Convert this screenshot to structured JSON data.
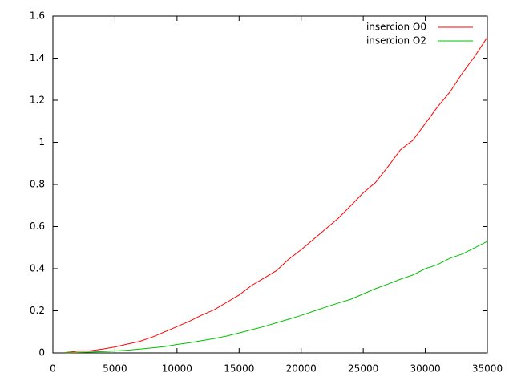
{
  "chart_data": {
    "type": "line",
    "x": [
      1000,
      2000,
      3000,
      4000,
      5000,
      6000,
      7000,
      8000,
      9000,
      10000,
      11000,
      12000,
      13000,
      14000,
      15000,
      16000,
      17000,
      18000,
      19000,
      20000,
      21000,
      22000,
      23000,
      24000,
      25000,
      26000,
      27000,
      28000,
      29000,
      30000,
      31000,
      32000,
      33000,
      34000,
      35000
    ],
    "series": [
      {
        "name": "insercion O0",
        "color": "#ff0000",
        "values": [
          0.002,
          0.008,
          0.01,
          0.018,
          0.028,
          0.042,
          0.055,
          0.075,
          0.1,
          0.125,
          0.15,
          0.18,
          0.205,
          0.24,
          0.275,
          0.32,
          0.355,
          0.39,
          0.445,
          0.49,
          0.54,
          0.59,
          0.64,
          0.7,
          0.76,
          0.81,
          0.885,
          0.965,
          1.01,
          1.09,
          1.17,
          1.24,
          1.33,
          1.41,
          1.5
        ]
      },
      {
        "name": "insercion O2",
        "color": "#00c000",
        "values": [
          0.001,
          0.002,
          0.004,
          0.006,
          0.009,
          0.013,
          0.018,
          0.024,
          0.03,
          0.04,
          0.048,
          0.058,
          0.068,
          0.08,
          0.095,
          0.11,
          0.125,
          0.143,
          0.16,
          0.178,
          0.198,
          0.218,
          0.237,
          0.255,
          0.28,
          0.305,
          0.327,
          0.35,
          0.37,
          0.4,
          0.42,
          0.45,
          0.47,
          0.5,
          0.53
        ]
      }
    ],
    "xlim": [
      0,
      35000
    ],
    "xticks": [
      0,
      5000,
      10000,
      15000,
      20000,
      25000,
      30000,
      35000
    ],
    "ylim": [
      0,
      1.6
    ],
    "yticks": [
      0,
      0.2,
      0.4,
      0.6,
      0.8,
      1,
      1.2,
      1.4,
      1.6
    ],
    "legend": "top-right"
  }
}
